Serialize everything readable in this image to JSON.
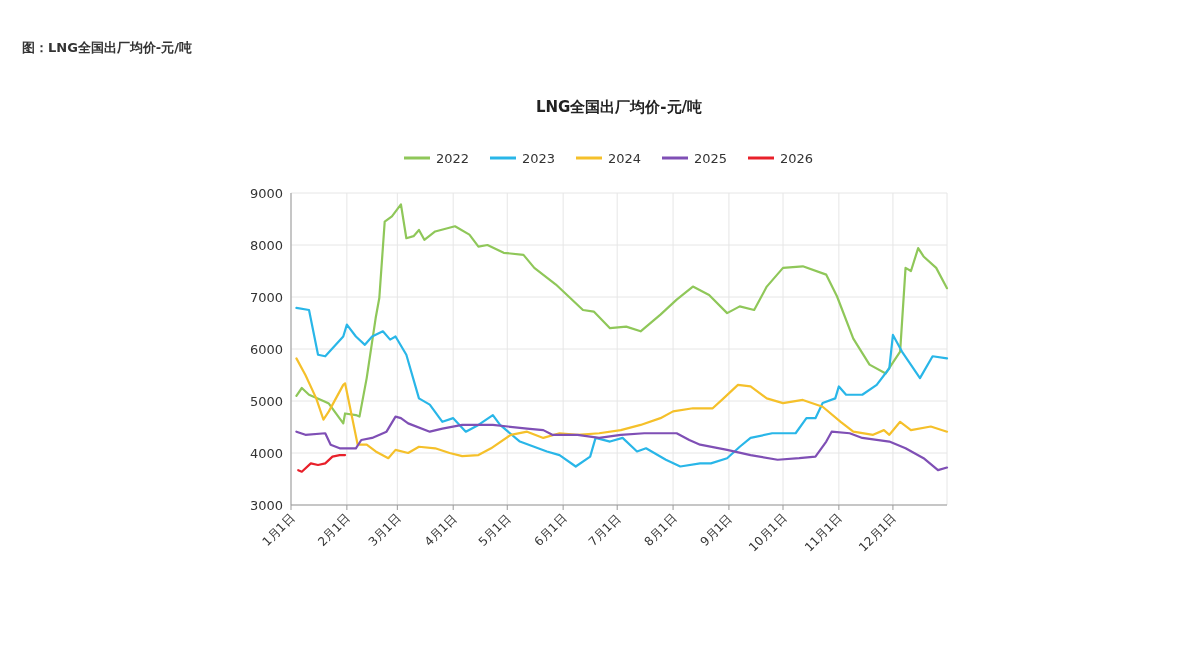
{
  "chart_data": {
    "type": "line",
    "title": "LNG全国出厂均价-元/吨",
    "annotations": [
      "图：LNG全国出厂均价-元/吨"
    ],
    "xlim": [
      "--01-01",
      "--12-31"
    ],
    "xticks": [
      {
        "value": "--01-01",
        "label": "1月1日"
      },
      {
        "value": "--02-01",
        "label": "2月1日"
      },
      {
        "value": "--03-01",
        "label": "3月1日"
      },
      {
        "value": "--04-01",
        "label": "4月1日"
      },
      {
        "value": "--05-01",
        "label": "5月1日"
      },
      {
        "value": "--06-01",
        "label": "6月1日"
      },
      {
        "value": "--07-01",
        "label": "7月1日"
      },
      {
        "value": "--08-01",
        "label": "8月1日"
      },
      {
        "value": "--09-01",
        "label": "9月1日"
      },
      {
        "value": "--10-01",
        "label": "10月1日"
      },
      {
        "value": "--11-01",
        "label": "11月1日"
      },
      {
        "value": "--12-01",
        "label": "12月1日"
      }
    ],
    "ylim": [
      3000,
      9000
    ],
    "yticks": [
      3000,
      4000,
      5000,
      6000,
      7000,
      8000,
      9000
    ],
    "grid": true,
    "legend": "top",
    "series": [
      {
        "name": "2022",
        "color": "#8fc759",
        "x": [
          "--01-04",
          "--01-07",
          "--01-11",
          "--01-19",
          "--01-22",
          "--01-30",
          "--01-31",
          "--02-06",
          "--02-08",
          "--02-12",
          "--02-17",
          "--02-19",
          "--02-22",
          "--02-26",
          "--03-03",
          "--03-06",
          "--03-10",
          "--03-13",
          "--03-16",
          "--03-22",
          "--04-02",
          "--04-10",
          "--04-15",
          "--04-20",
          "--04-29",
          "--05-10",
          "--05-16",
          "--05-28",
          "--06-12",
          "--06-18",
          "--06-27",
          "--07-06",
          "--07-14",
          "--07-25",
          "--08-03",
          "--08-12",
          "--08-21",
          "--08-31",
          "--09-07",
          "--09-15",
          "--09-22",
          "--10-01",
          "--10-12",
          "--10-25",
          "--10-31",
          "--11-09",
          "--11-18",
          "--11-27",
          "--12-05",
          "--12-08",
          "--12-11",
          "--12-15",
          "--12-18",
          "--12-25",
          "--12-31"
        ],
        "values": [
          5100,
          5250,
          5120,
          5000,
          4950,
          4570,
          4760,
          4730,
          4700,
          5440,
          6600,
          6980,
          8450,
          8550,
          8780,
          8130,
          8170,
          8290,
          8100,
          8260,
          8360,
          8200,
          7970,
          8000,
          7850,
          7810,
          7560,
          7240,
          6750,
          6720,
          6400,
          6430,
          6340,
          6660,
          6950,
          7200,
          7040,
          6690,
          6820,
          6750,
          7200,
          7560,
          7590,
          7430,
          7010,
          6200,
          5700,
          5530,
          5950,
          7560,
          7500,
          7940,
          7780,
          7560,
          7170
        ]
      },
      {
        "name": "2023",
        "color": "#29b6e8",
        "x": [
          "--01-04",
          "--01-11",
          "--01-16",
          "--01-20",
          "--01-30",
          "--02-01",
          "--02-06",
          "--02-11",
          "--02-15",
          "--02-21",
          "--02-25",
          "--02-28",
          "--03-06",
          "--03-13",
          "--03-19",
          "--03-26",
          "--04-01",
          "--04-08",
          "--04-15",
          "--04-23",
          "--04-27",
          "--05-08",
          "--05-23",
          "--05-30",
          "--06-08",
          "--06-16",
          "--06-19",
          "--06-27",
          "--07-04",
          "--07-12",
          "--07-17",
          "--07-28",
          "--08-05",
          "--08-16",
          "--08-22",
          "--08-31",
          "--09-07",
          "--09-13",
          "--09-25",
          "--10-08",
          "--10-14",
          "--10-19",
          "--10-23",
          "--10-30",
          "--11-01",
          "--11-05",
          "--11-14",
          "--11-22",
          "--11-29",
          "--12-01",
          "--12-06",
          "--12-16",
          "--12-23",
          "--12-31"
        ],
        "values": [
          6790,
          6750,
          5890,
          5860,
          6240,
          6470,
          6240,
          6080,
          6240,
          6340,
          6180,
          6240,
          5890,
          5050,
          4930,
          4600,
          4670,
          4410,
          4540,
          4730,
          4540,
          4220,
          4030,
          3960,
          3740,
          3930,
          4290,
          4220,
          4290,
          4030,
          4090,
          3870,
          3740,
          3800,
          3800,
          3900,
          4120,
          4290,
          4380,
          4380,
          4670,
          4670,
          4960,
          5050,
          5280,
          5120,
          5120,
          5310,
          5630,
          6270,
          5950,
          5440,
          5860,
          5820
        ]
      },
      {
        "name": "2024",
        "color": "#f5c02a",
        "x": [
          "--01-04",
          "--01-09",
          "--01-15",
          "--01-19",
          "--01-22",
          "--01-30",
          "--01-31",
          "--02-04",
          "--02-07",
          "--02-12",
          "--02-17",
          "--02-24",
          "--02-28",
          "--03-07",
          "--03-13",
          "--03-22",
          "--03-30",
          "--04-06",
          "--04-15",
          "--04-22",
          "--05-03",
          "--05-12",
          "--05-21",
          "--05-30",
          "--06-09",
          "--06-21",
          "--07-03",
          "--07-14",
          "--07-25",
          "--08-01",
          "--08-12",
          "--08-23",
          "--08-29",
          "--09-06",
          "--09-13",
          "--09-22",
          "--10-01",
          "--10-12",
          "--10-23",
          "--11-02",
          "--11-09",
          "--11-20",
          "--11-26",
          "--11-29",
          "--12-05",
          "--12-11",
          "--12-22",
          "--12-31"
        ],
        "values": [
          5820,
          5500,
          5050,
          4640,
          4800,
          5310,
          5340,
          4670,
          4160,
          4160,
          4030,
          3900,
          4060,
          4000,
          4120,
          4090,
          4000,
          3940,
          3960,
          4090,
          4350,
          4410,
          4290,
          4380,
          4350,
          4380,
          4440,
          4540,
          4670,
          4800,
          4860,
          4860,
          5050,
          5310,
          5280,
          5050,
          4960,
          5020,
          4890,
          4600,
          4410,
          4350,
          4440,
          4350,
          4600,
          4440,
          4510,
          4410
        ]
      },
      {
        "name": "2025",
        "color": "#7f4fb5",
        "x": [
          "--01-04",
          "--01-09",
          "--01-20",
          "--01-23",
          "--01-28",
          "--02-06",
          "--02-09",
          "--02-15",
          "--02-23",
          "--02-28",
          "--03-03",
          "--03-07",
          "--03-19",
          "--03-26",
          "--04-06",
          "--04-23",
          "--05-12",
          "--05-21",
          "--05-26",
          "--06-09",
          "--06-21",
          "--07-03",
          "--07-16",
          "--08-03",
          "--08-10",
          "--08-16",
          "--08-31",
          "--09-13",
          "--09-28",
          "--10-10",
          "--10-19",
          "--10-25",
          "--10-28",
          "--11-07",
          "--11-14",
          "--11-29",
          "--12-08",
          "--12-18",
          "--12-26",
          "--12-31"
        ],
        "values": [
          4410,
          4350,
          4380,
          4160,
          4090,
          4090,
          4250,
          4290,
          4410,
          4700,
          4670,
          4570,
          4410,
          4470,
          4540,
          4540,
          4470,
          4440,
          4350,
          4350,
          4290,
          4350,
          4380,
          4380,
          4250,
          4160,
          4060,
          3960,
          3870,
          3900,
          3930,
          4220,
          4410,
          4380,
          4290,
          4220,
          4090,
          3900,
          3670,
          3720
        ]
      },
      {
        "name": "2026",
        "color": "#e8202a",
        "x": [
          "--01-05",
          "--01-07",
          "--01-12",
          "--01-16",
          "--01-20",
          "--01-24",
          "--01-28",
          "--01-31"
        ],
        "values": [
          3670,
          3640,
          3800,
          3770,
          3800,
          3930,
          3960,
          3960
        ]
      }
    ]
  }
}
